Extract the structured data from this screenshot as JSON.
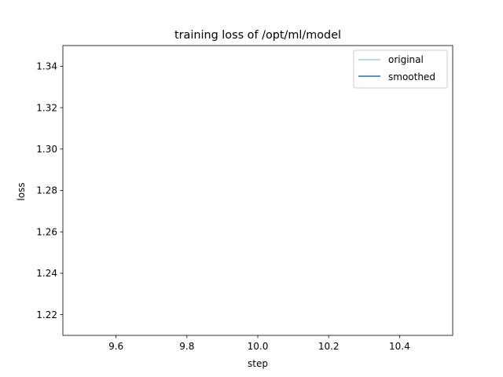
{
  "chart_data": {
    "type": "line",
    "title": "training loss of /opt/ml/model",
    "xlabel": "step",
    "ylabel": "loss",
    "xlim": [
      9.45,
      10.55
    ],
    "ylim": [
      1.21,
      1.35
    ],
    "x_ticks": [
      9.6,
      9.8,
      10.0,
      10.2,
      10.4
    ],
    "x_tick_labels": [
      "9.6",
      "9.8",
      "10.0",
      "10.2",
      "10.4"
    ],
    "y_ticks": [
      1.22,
      1.24,
      1.26,
      1.28,
      1.3,
      1.32,
      1.34
    ],
    "y_tick_labels": [
      "1.22",
      "1.24",
      "1.26",
      "1.28",
      "1.30",
      "1.32",
      "1.34"
    ],
    "grid": false,
    "legend_position": "top-right",
    "series": [
      {
        "name": "original",
        "color": "#a6cee3",
        "x": [],
        "y": []
      },
      {
        "name": "smoothed",
        "color": "#1f78b4",
        "x": [],
        "y": []
      }
    ]
  }
}
